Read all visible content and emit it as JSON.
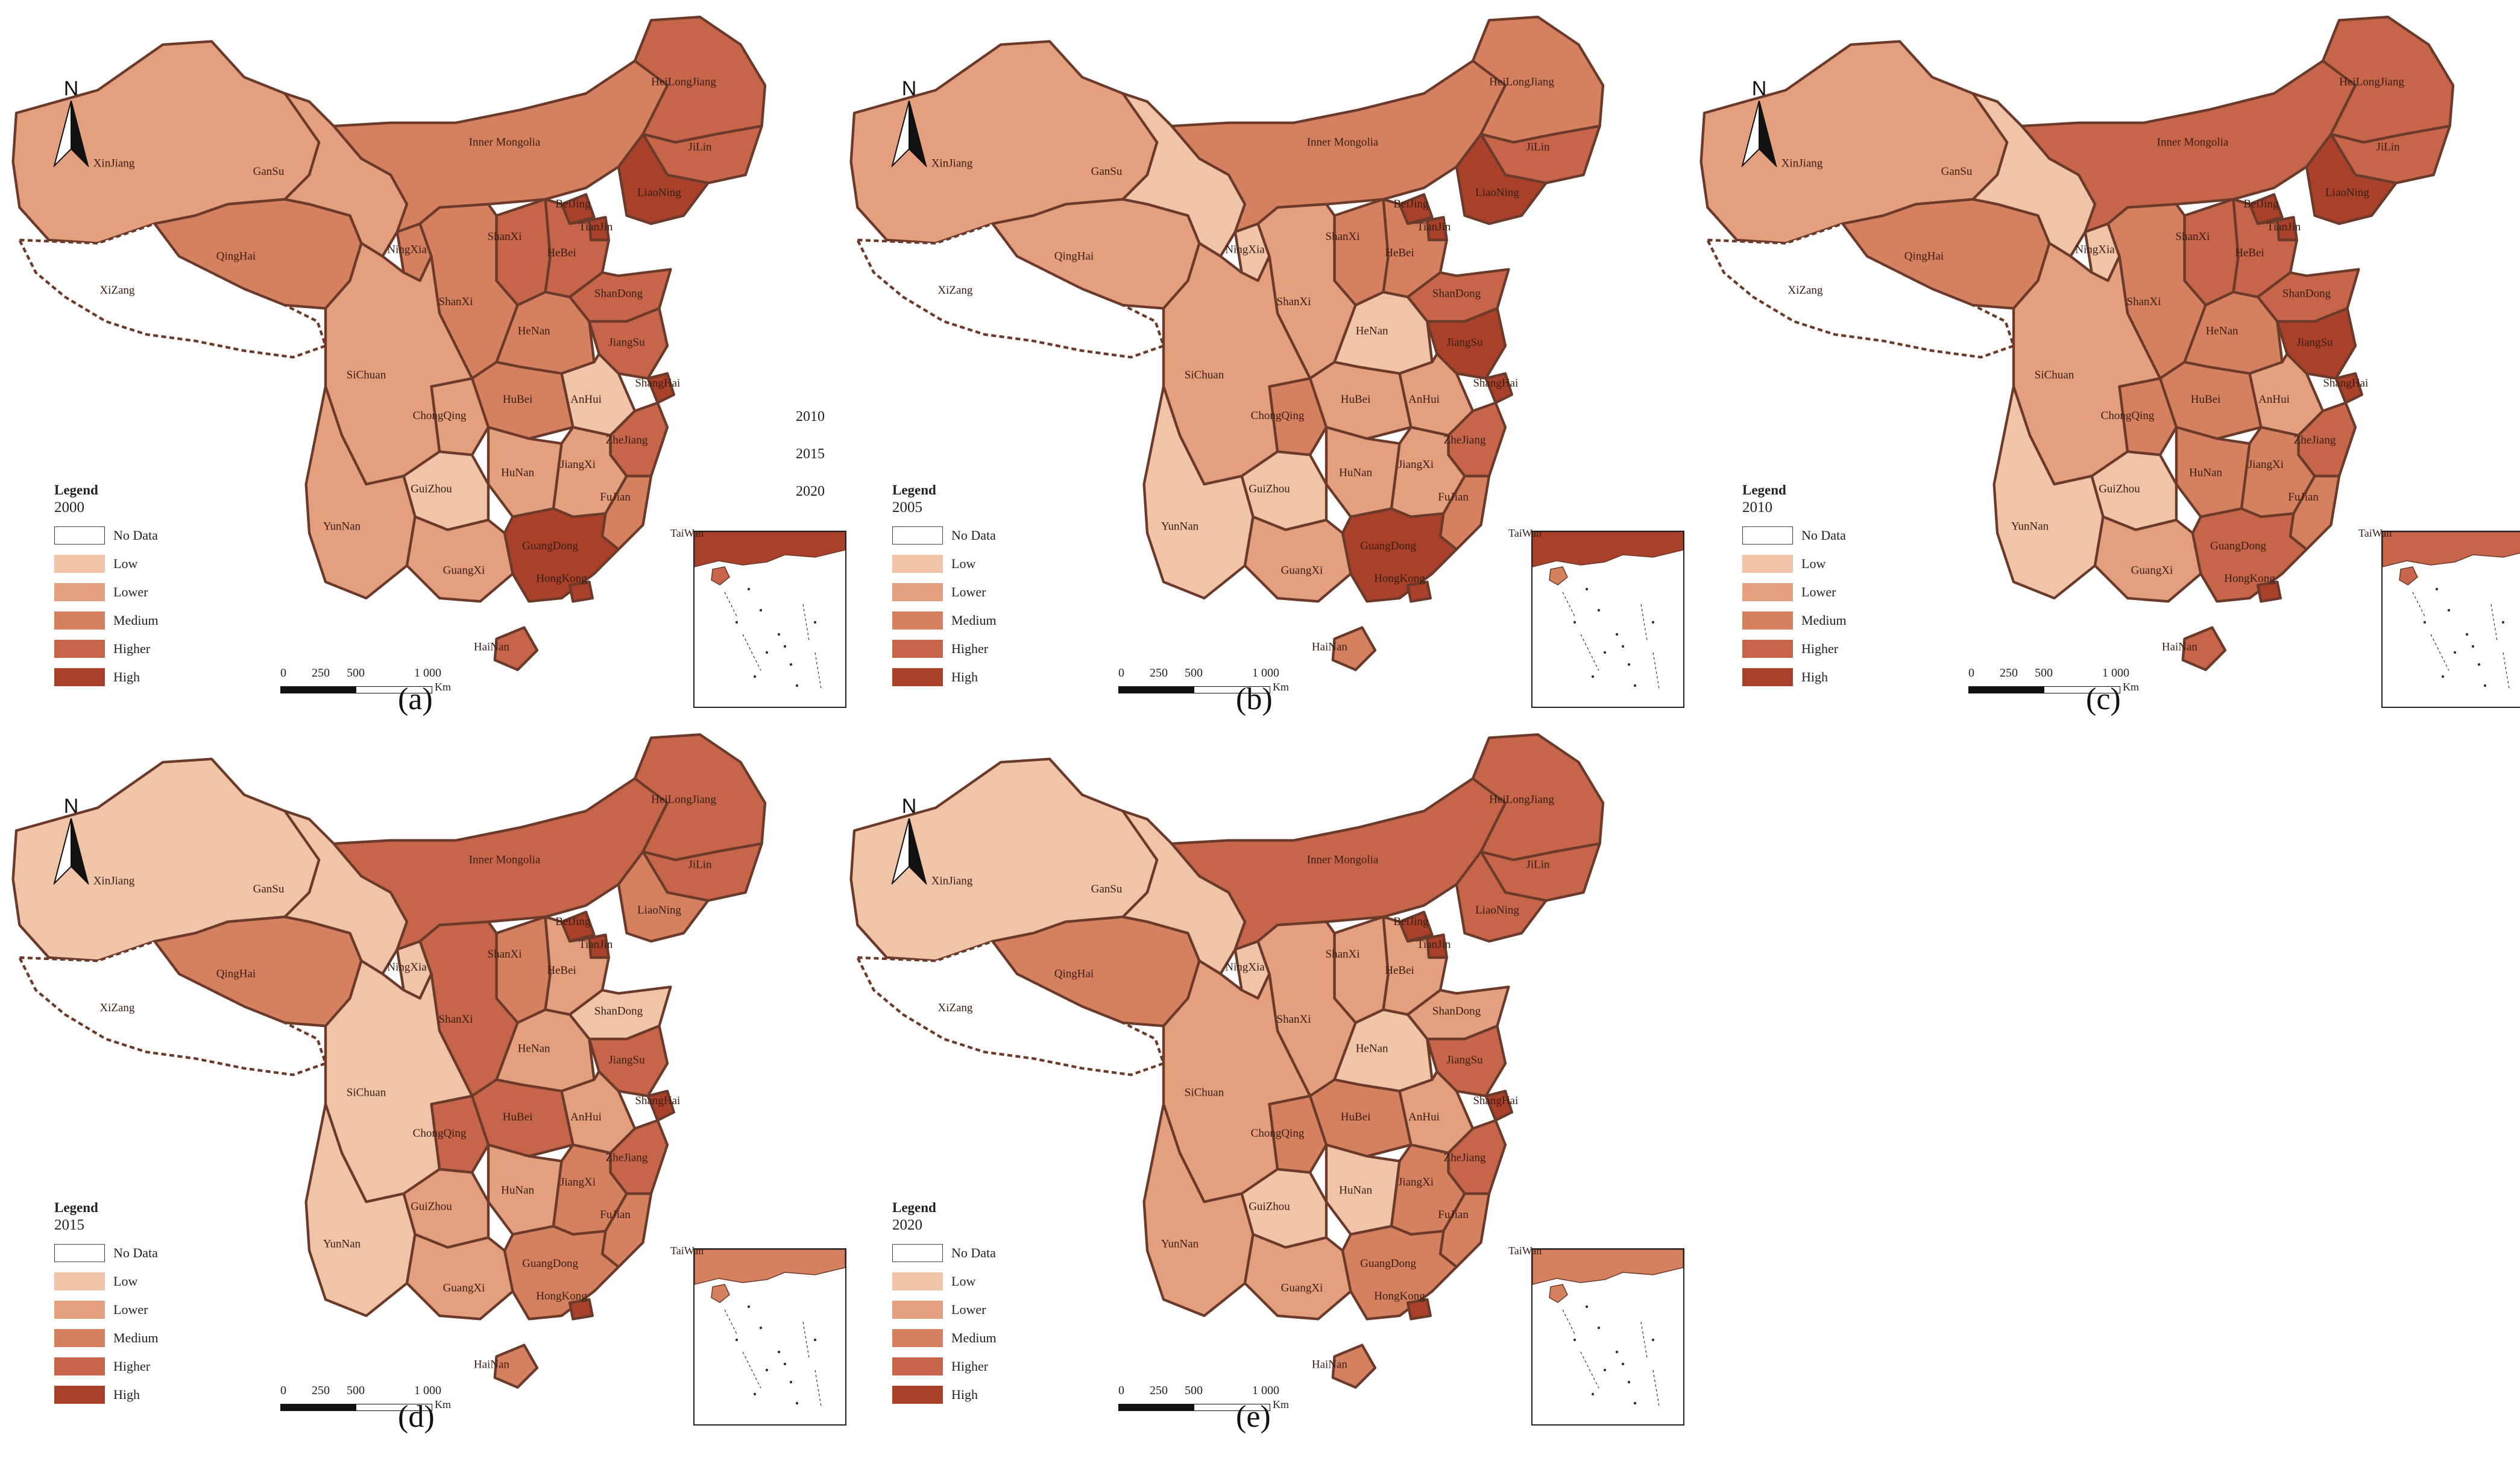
{
  "legend_title": "Legend",
  "legend_classes": [
    "No Data",
    "Low",
    "Lower",
    "Medium",
    "Higher",
    "High"
  ],
  "class_colors": [
    "#ffffff",
    "#f0c4a6",
    "#e39f7e",
    "#d5805f",
    "#c66549",
    "#a9412a"
  ],
  "north_label": "N",
  "scale": {
    "ticks": [
      "0",
      "250",
      "500",
      "1 000"
    ],
    "unit": "Km"
  },
  "side_years": [
    "2010",
    "2015",
    "2020"
  ],
  "inset_labels": {
    "taiwan": "TaiWan"
  },
  "provinces": {
    "xinjiang": "XinJiang",
    "xizang": "XiZang",
    "qinghai": "QingHai",
    "gansu": "GanSu",
    "inner_mongolia": "Inner Mongolia",
    "heilongjiang": "HeiLongJiang",
    "jilin": "JiLin",
    "liaoning": "LiaoNing",
    "beijing": "BeiJing",
    "tianjin": "TianJin",
    "hebei": "HeBei",
    "shanxi_n": "ShanXi",
    "shandong": "ShanDong",
    "ningxia": "NingXia",
    "shaanxi": "ShanXi",
    "henan": "HeNan",
    "jiangsu": "JiangSu",
    "shanghai": "ShangHai",
    "anhui": "AnHui",
    "hubei": "HuBei",
    "sichuan": "SiChuan",
    "chongqing": "ChongQing",
    "zhejiang": "ZheJiang",
    "hunan": "HuNan",
    "jiangxi": "JiangXi",
    "guizhou": "GuiZhou",
    "fujian": "FuJian",
    "yunnan": "YunNan",
    "guangxi": "GuangXi",
    "guangdong": "GuangDong",
    "hongkong": "HongKong",
    "hainan": "HaiNan"
  },
  "panels": [
    {
      "caption": "(a)",
      "year": "2000",
      "classes": {
        "xinjiang": 2,
        "xizang": 0,
        "qinghai": 3,
        "gansu": 2,
        "inner_mongolia": 3,
        "heilongjiang": 4,
        "jilin": 4,
        "liaoning": 5,
        "beijing": 5,
        "tianjin": 5,
        "hebei": 4,
        "shanxi_n": 4,
        "shandong": 4,
        "ningxia": 3,
        "shaanxi": 3,
        "henan": 3,
        "jiangsu": 4,
        "shanghai": 5,
        "anhui": 1,
        "hubei": 3,
        "sichuan": 2,
        "chongqing": 2,
        "zhejiang": 4,
        "hunan": 2,
        "jiangxi": 2,
        "guizhou": 1,
        "fujian": 3,
        "yunnan": 2,
        "guangxi": 2,
        "guangdong": 5,
        "hongkong": 5,
        "hainan": 4
      }
    },
    {
      "caption": "(b)",
      "year": "2005",
      "classes": {
        "xinjiang": 2,
        "xizang": 0,
        "qinghai": 2,
        "gansu": 1,
        "inner_mongolia": 3,
        "heilongjiang": 3,
        "jilin": 4,
        "liaoning": 5,
        "beijing": 5,
        "tianjin": 5,
        "hebei": 3,
        "shanxi_n": 3,
        "shandong": 4,
        "ningxia": 1,
        "shaanxi": 2,
        "henan": 1,
        "jiangsu": 5,
        "shanghai": 5,
        "anhui": 2,
        "hubei": 2,
        "sichuan": 2,
        "chongqing": 3,
        "zhejiang": 4,
        "hunan": 2,
        "jiangxi": 2,
        "guizhou": 1,
        "fujian": 3,
        "yunnan": 1,
        "guangxi": 2,
        "guangdong": 5,
        "hongkong": 5,
        "hainan": 3
      }
    },
    {
      "caption": "(c)",
      "year": "2010",
      "classes": {
        "xinjiang": 2,
        "xizang": 0,
        "qinghai": 3,
        "gansu": 1,
        "inner_mongolia": 4,
        "heilongjiang": 4,
        "jilin": 4,
        "liaoning": 5,
        "beijing": 5,
        "tianjin": 5,
        "hebei": 4,
        "shanxi_n": 4,
        "shandong": 4,
        "ningxia": 1,
        "shaanxi": 3,
        "henan": 3,
        "jiangsu": 5,
        "shanghai": 5,
        "anhui": 2,
        "hubei": 3,
        "sichuan": 2,
        "chongqing": 3,
        "zhejiang": 4,
        "hunan": 3,
        "jiangxi": 3,
        "guizhou": 1,
        "fujian": 3,
        "yunnan": 1,
        "guangxi": 2,
        "guangdong": 4,
        "hongkong": 5,
        "hainan": 4
      }
    },
    {
      "caption": "(d)",
      "year": "2015",
      "classes": {
        "xinjiang": 1,
        "xizang": 0,
        "qinghai": 3,
        "gansu": 1,
        "inner_mongolia": 4,
        "heilongjiang": 4,
        "jilin": 4,
        "liaoning": 3,
        "beijing": 5,
        "tianjin": 5,
        "hebei": 2,
        "shanxi_n": 3,
        "shandong": 1,
        "ningxia": 1,
        "shaanxi": 4,
        "henan": 2,
        "jiangsu": 4,
        "shanghai": 5,
        "anhui": 2,
        "hubei": 4,
        "sichuan": 1,
        "chongqing": 4,
        "zhejiang": 4,
        "hunan": 2,
        "jiangxi": 3,
        "guizhou": 2,
        "fujian": 3,
        "yunnan": 1,
        "guangxi": 2,
        "guangdong": 3,
        "hongkong": 5,
        "hainan": 3
      }
    },
    {
      "caption": "(e)",
      "year": "2020",
      "classes": {
        "xinjiang": 1,
        "xizang": 0,
        "qinghai": 3,
        "gansu": 1,
        "inner_mongolia": 4,
        "heilongjiang": 4,
        "jilin": 4,
        "liaoning": 4,
        "beijing": 5,
        "tianjin": 5,
        "hebei": 2,
        "shanxi_n": 2,
        "shandong": 2,
        "ningxia": 1,
        "shaanxi": 2,
        "henan": 1,
        "jiangsu": 4,
        "shanghai": 5,
        "anhui": 2,
        "hubei": 3,
        "sichuan": 2,
        "chongqing": 3,
        "zhejiang": 4,
        "hunan": 1,
        "jiangxi": 3,
        "guizhou": 1,
        "fujian": 3,
        "yunnan": 2,
        "guangxi": 2,
        "guangdong": 3,
        "hongkong": 5,
        "hainan": 3
      }
    }
  ]
}
